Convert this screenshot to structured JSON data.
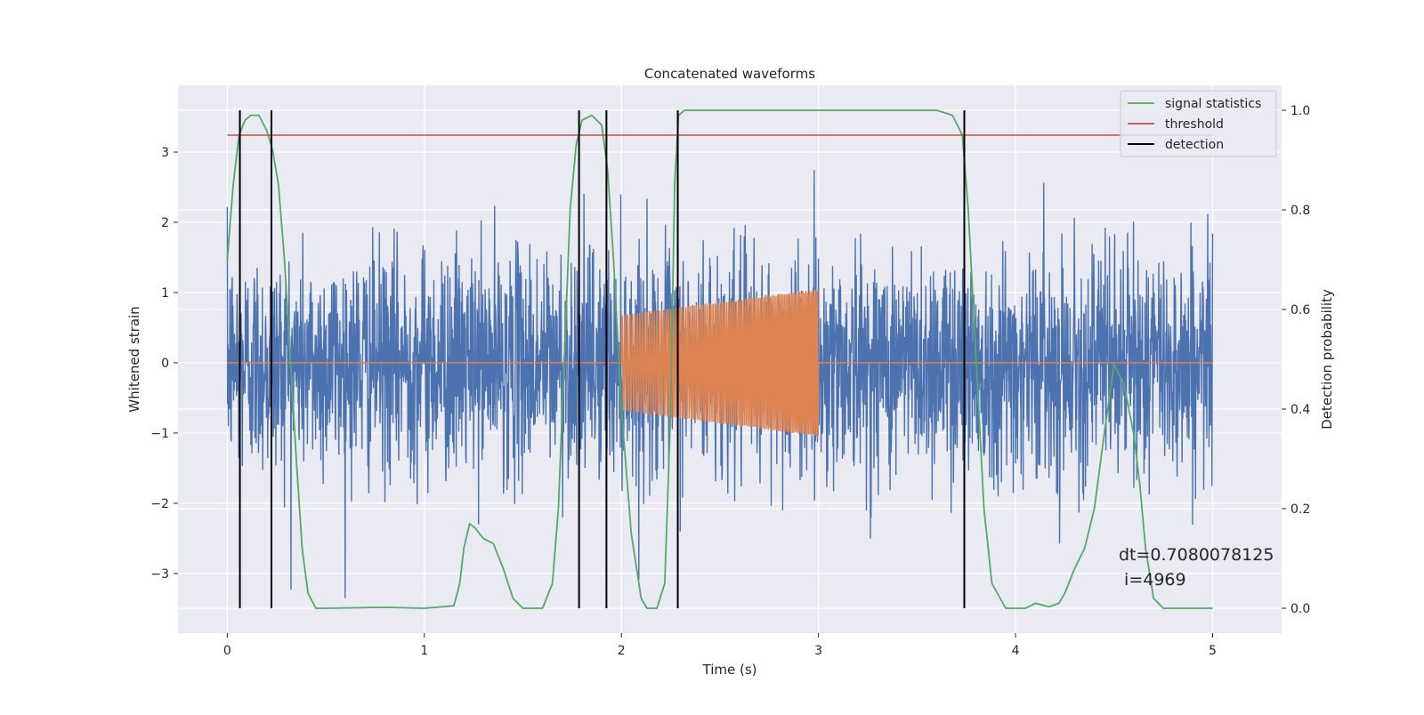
{
  "chart_data": {
    "type": "line",
    "title": "Concatenated waveforms",
    "xlabel": "Time (s)",
    "ylabel": "Whitened strain",
    "y2label": "Detection probability",
    "xlim": [
      -0.25,
      5.35
    ],
    "ylim": [
      -3.85,
      3.95
    ],
    "y2lim": [
      -0.05,
      1.05
    ],
    "xticks": [
      0,
      1,
      2,
      3,
      4,
      5
    ],
    "xtick_labels": [
      "0",
      "1",
      "2",
      "3",
      "4",
      "5"
    ],
    "yticks": [
      -3,
      -2,
      -1,
      0,
      1,
      2,
      3
    ],
    "ytick_labels": [
      "−3",
      "−2",
      "−1",
      "0",
      "1",
      "2",
      "3"
    ],
    "y2ticks": [
      0.0,
      0.2,
      0.4,
      0.6,
      0.8,
      1.0
    ],
    "y2tick_labels": [
      "0.0",
      "0.2",
      "0.4",
      "0.6",
      "0.8",
      "1.0"
    ],
    "grid": true,
    "legend_position": "top-right",
    "legend": [
      "signal statistics",
      "threshold",
      "detection"
    ],
    "colors": {
      "strain": "#4c72b0",
      "injection": "#dd8452",
      "signal_statistics": "#55a868",
      "threshold": "#c44e52",
      "detection": "#000000",
      "plot_background": "#eaeaf2",
      "grid": "#ffffff"
    },
    "series": [
      {
        "name": "signal statistics",
        "axis": "right",
        "x": [
          0.0,
          0.03,
          0.06,
          0.09,
          0.12,
          0.16,
          0.2,
          0.23,
          0.26,
          0.29,
          0.32,
          0.35,
          0.38,
          0.41,
          0.45,
          0.5,
          0.8,
          1.0,
          1.15,
          1.18,
          1.2,
          1.23,
          1.26,
          1.3,
          1.35,
          1.4,
          1.45,
          1.5,
          1.6,
          1.65,
          1.68,
          1.71,
          1.74,
          1.77,
          1.8,
          1.85,
          1.9,
          1.93,
          1.96,
          2.0,
          2.05,
          2.1,
          2.13,
          2.18,
          2.22,
          2.25,
          2.27,
          2.29,
          2.32,
          2.4,
          3.6,
          3.68,
          3.73,
          3.76,
          3.8,
          3.84,
          3.88,
          3.95,
          4.05,
          4.1,
          4.17,
          4.22,
          4.25,
          4.3,
          4.35,
          4.4,
          4.45,
          4.5,
          4.55,
          4.6,
          4.63,
          4.66,
          4.7,
          4.75,
          5.0
        ],
        "y": [
          0.7,
          0.85,
          0.95,
          0.98,
          0.99,
          0.99,
          0.96,
          0.92,
          0.85,
          0.7,
          0.5,
          0.3,
          0.12,
          0.03,
          0.0,
          0.0,
          0.002,
          0.0,
          0.005,
          0.05,
          0.12,
          0.17,
          0.16,
          0.14,
          0.13,
          0.08,
          0.02,
          0.0,
          0.0,
          0.05,
          0.2,
          0.5,
          0.8,
          0.93,
          0.98,
          0.99,
          0.97,
          0.88,
          0.7,
          0.4,
          0.15,
          0.02,
          0.0,
          0.0,
          0.05,
          0.4,
          0.85,
          0.99,
          1.0,
          1.0,
          1.0,
          0.99,
          0.95,
          0.8,
          0.5,
          0.2,
          0.05,
          0.0,
          0.0,
          0.01,
          0.003,
          0.01,
          0.03,
          0.08,
          0.12,
          0.2,
          0.35,
          0.49,
          0.45,
          0.35,
          0.25,
          0.12,
          0.02,
          0.0,
          0.0
        ]
      },
      {
        "name": "threshold",
        "axis": "right",
        "x": [
          0,
          5
        ],
        "y": [
          0.95,
          0.95
        ]
      },
      {
        "name": "detection",
        "axis": "right",
        "type": "vlines",
        "x": [
          0.064,
          0.224,
          1.785,
          1.924,
          2.286,
          3.74
        ],
        "y_range": [
          0.0,
          1.0
        ]
      }
    ],
    "strain": {
      "x_range": [
        0,
        5
      ],
      "approx_sigma": 0.8
    },
    "injection": {
      "x_start": 2.0,
      "x_end": 3.0,
      "amplitude_start": 0.68,
      "amplitude_end": 1.05,
      "baseline": 0.0
    },
    "annotation": {
      "line1": "dt=0.7080078125",
      "line2": " i=4969",
      "x": 4.5,
      "y": 0.1
    }
  }
}
